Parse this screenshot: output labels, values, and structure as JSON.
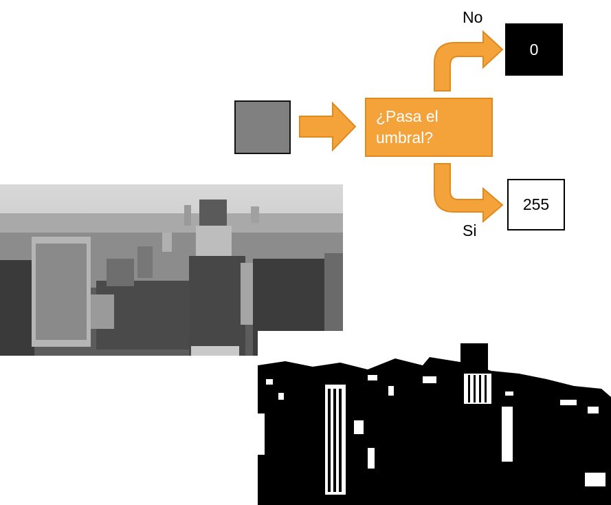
{
  "decision": {
    "text": "¿Pasa el\numbral?"
  },
  "outputs": {
    "no_label": "No",
    "si_label": "Si",
    "zero_value": "0",
    "max_value": "255"
  },
  "colors": {
    "arrow_fill": "#f4a23a",
    "arrow_stroke": "#e0891c",
    "input_pixel": "#808080"
  }
}
